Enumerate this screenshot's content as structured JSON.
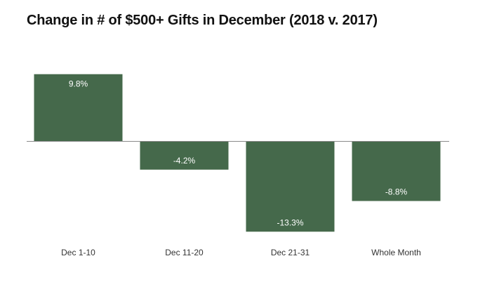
{
  "chart_data": {
    "type": "bar",
    "title": "Change in # of $500+ Gifts in December (2018 v. 2017)",
    "categories": [
      "Dec 1-10",
      "Dec 11-20",
      "Dec 21-31",
      "Whole Month"
    ],
    "values": [
      9.8,
      -4.2,
      -13.3,
      -8.8
    ],
    "data_labels": [
      "9.8%",
      "-4.2%",
      "-13.3%",
      "-8.8%"
    ],
    "xlabel": "",
    "ylabel": "",
    "ylim": [
      -13.3,
      9.8
    ],
    "grid": false,
    "legend": "none",
    "bar_color": "#45694b"
  }
}
